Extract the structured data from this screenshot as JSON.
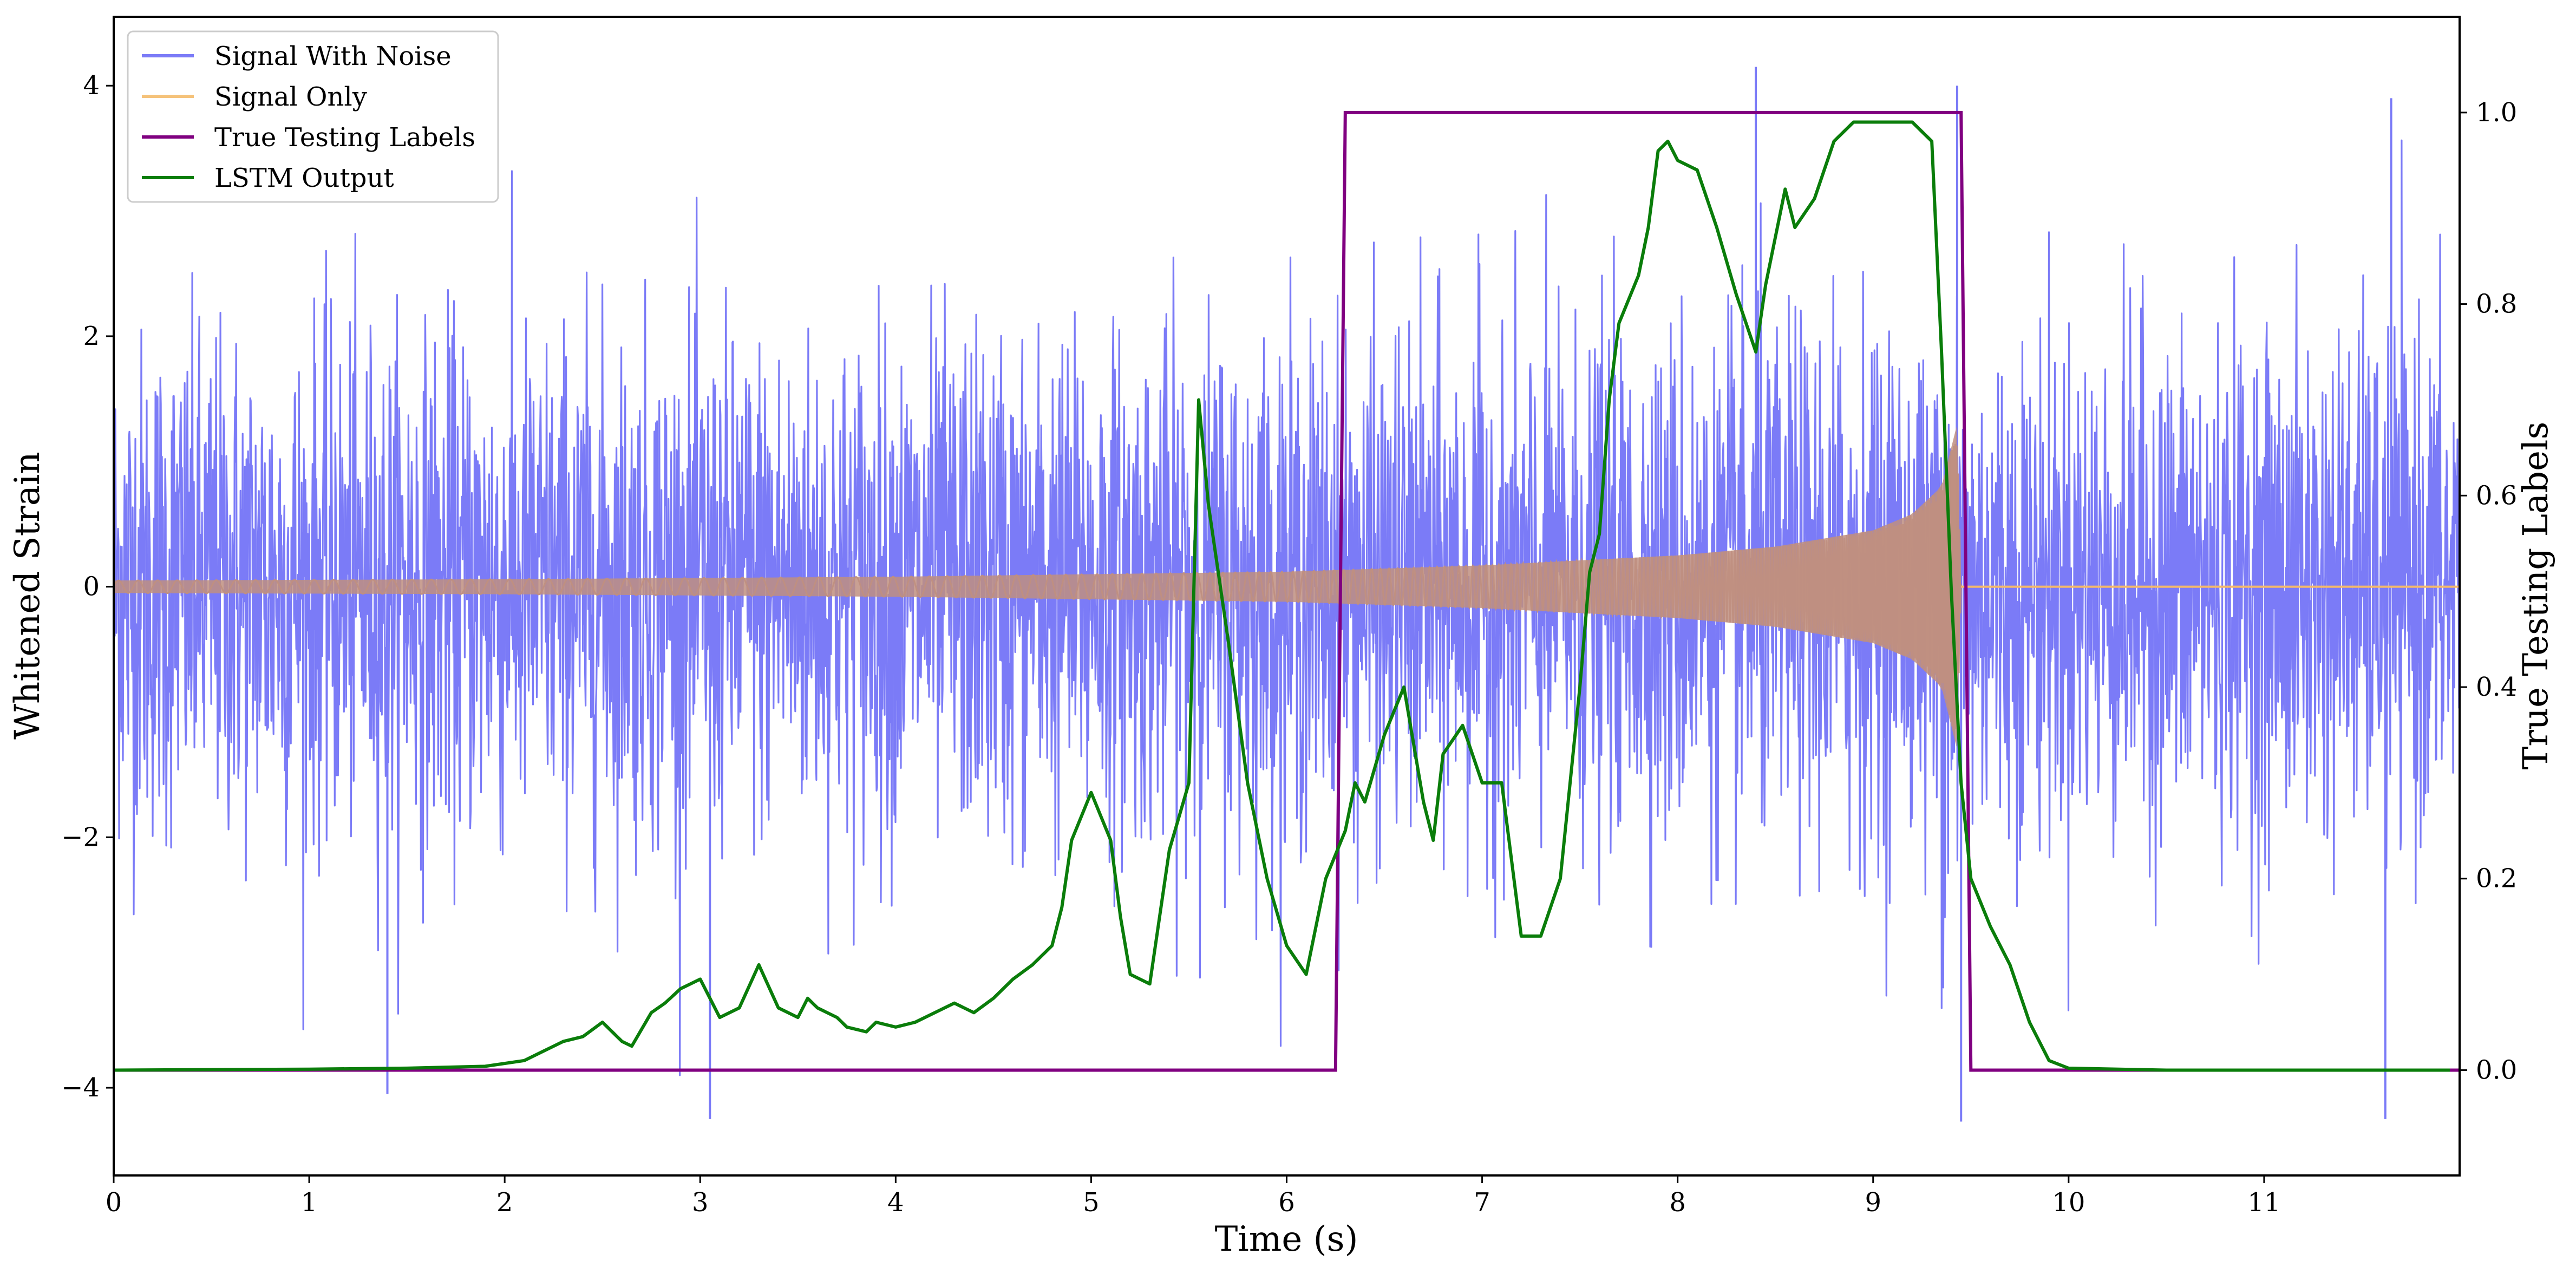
{
  "chart_data": {
    "type": "line",
    "xlabel": "Time (s)",
    "ylabel": "Whitened Strain",
    "y2label": "True Testing Labels",
    "xlim": [
      0,
      12.0
    ],
    "ylim": [
      -4.7,
      4.55
    ],
    "y2lim": [
      -0.11,
      1.1
    ],
    "x_ticks": [
      "0",
      "1",
      "2",
      "3",
      "4",
      "5",
      "6",
      "7",
      "8",
      "9",
      "10",
      "11"
    ],
    "y_ticks": [
      "−4",
      "−2",
      "0",
      "2",
      "4"
    ],
    "y2_ticks": [
      "0.0",
      "0.2",
      "0.4",
      "0.6",
      "0.8",
      "1.0"
    ],
    "legend_position": "upper-left",
    "legend": [
      "Signal With Noise",
      "Signal Only",
      "True Testing Labels",
      "LSTM Output"
    ],
    "colors": {
      "signal_with_noise": "#7b7bf7",
      "signal_only": "#f5b96a",
      "overlap": "#c08f80",
      "true_labels": "#800080",
      "lstm": "#0a7d0a"
    },
    "series": [
      {
        "name": "Signal With Noise",
        "axis": "left",
        "description_values": {
          "noise_std": 1.0,
          "typical_range": [
            -3.5,
            3.5
          ],
          "spikes": [
            [
              8.4,
              4.15
            ],
            [
              9.43,
              4.0
            ],
            [
              11.65,
              3.9
            ],
            [
              1.4,
              -4.05
            ],
            [
              3.05,
              -4.25
            ],
            [
              9.45,
              -4.27
            ],
            [
              11.62,
              -4.25
            ]
          ]
        }
      },
      {
        "name": "Signal Only",
        "axis": "left",
        "envelope": {
          "x": [
            0,
            2,
            4,
            6,
            7,
            8,
            8.5,
            9,
            9.2,
            9.35,
            9.43,
            9.45
          ],
          "amp": [
            0.05,
            0.06,
            0.08,
            0.12,
            0.17,
            0.25,
            0.32,
            0.45,
            0.58,
            0.8,
            1.3,
            0.0
          ]
        },
        "end_x": 9.45
      },
      {
        "name": "True Testing Labels",
        "axis": "right",
        "x": [
          0,
          6.25,
          6.3,
          9.45,
          9.5,
          12.0
        ],
        "y": [
          0,
          0,
          1,
          1,
          0,
          0
        ]
      },
      {
        "name": "LSTM Output",
        "axis": "right",
        "x": [
          0,
          1.0,
          1.5,
          1.9,
          2.1,
          2.2,
          2.3,
          2.4,
          2.5,
          2.55,
          2.6,
          2.65,
          2.75,
          2.82,
          2.9,
          3.0,
          3.1,
          3.2,
          3.3,
          3.4,
          3.5,
          3.55,
          3.6,
          3.7,
          3.75,
          3.85,
          3.9,
          4.0,
          4.1,
          4.2,
          4.3,
          4.4,
          4.5,
          4.6,
          4.7,
          4.8,
          4.85,
          4.9,
          5.0,
          5.1,
          5.15,
          5.2,
          5.3,
          5.35,
          5.4,
          5.5,
          5.55,
          5.6,
          5.7,
          5.8,
          5.9,
          6.0,
          6.1,
          6.2,
          6.3,
          6.35,
          6.4,
          6.5,
          6.6,
          6.7,
          6.75,
          6.8,
          6.9,
          7.0,
          7.1,
          7.2,
          7.3,
          7.4,
          7.5,
          7.55,
          7.6,
          7.65,
          7.7,
          7.8,
          7.85,
          7.9,
          7.95,
          8.0,
          8.1,
          8.2,
          8.3,
          8.4,
          8.45,
          8.55,
          8.6,
          8.7,
          8.8,
          8.9,
          9.0,
          9.1,
          9.2,
          9.25,
          9.3,
          9.35,
          9.4,
          9.45,
          9.5,
          9.6,
          9.7,
          9.8,
          9.9,
          10.0,
          10.5,
          11.95
        ],
        "y": [
          0,
          0.001,
          0.002,
          0.004,
          0.01,
          0.02,
          0.03,
          0.035,
          0.05,
          0.04,
          0.03,
          0.025,
          0.06,
          0.07,
          0.085,
          0.095,
          0.055,
          0.065,
          0.11,
          0.065,
          0.055,
          0.075,
          0.065,
          0.055,
          0.045,
          0.04,
          0.05,
          0.045,
          0.05,
          0.06,
          0.07,
          0.06,
          0.075,
          0.095,
          0.11,
          0.13,
          0.17,
          0.24,
          0.29,
          0.24,
          0.16,
          0.1,
          0.09,
          0.16,
          0.23,
          0.3,
          0.7,
          0.59,
          0.45,
          0.3,
          0.2,
          0.13,
          0.1,
          0.2,
          0.25,
          0.3,
          0.28,
          0.35,
          0.4,
          0.28,
          0.24,
          0.33,
          0.36,
          0.3,
          0.3,
          0.14,
          0.14,
          0.2,
          0.4,
          0.52,
          0.56,
          0.7,
          0.78,
          0.83,
          0.88,
          0.96,
          0.97,
          0.95,
          0.94,
          0.88,
          0.81,
          0.75,
          0.82,
          0.92,
          0.88,
          0.91,
          0.97,
          0.99,
          0.99,
          0.99,
          0.99,
          0.98,
          0.97,
          0.75,
          0.5,
          0.3,
          0.2,
          0.15,
          0.11,
          0.05,
          0.01,
          0.002,
          0.0,
          0.0
        ]
      }
    ]
  }
}
